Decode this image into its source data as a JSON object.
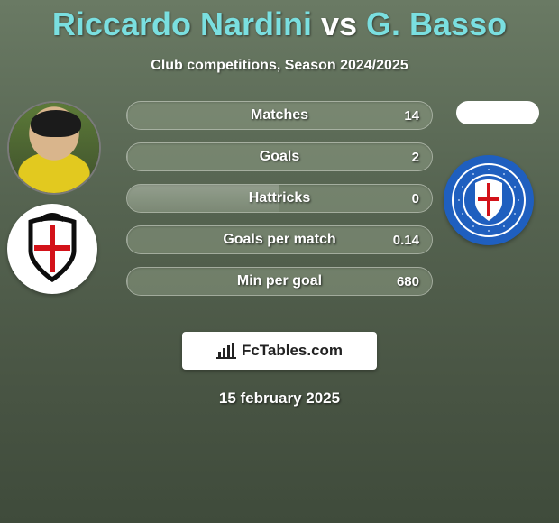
{
  "header": {
    "title_left": "Riccardo Nardini",
    "title_vs": " vs ",
    "title_right": "G. Basso",
    "title_color_accent": "#7adfe0",
    "title_fontsize": 36,
    "subtitle": "Club competitions, Season 2024/2025",
    "subtitle_fontsize": 16
  },
  "background": {
    "gradient_top": "#6a7a64",
    "gradient_bottom": "#3f4b3b"
  },
  "left_player": {
    "name": "Riccardo Nardini",
    "has_photo": true,
    "club_badge_bg": "#ffffff",
    "club_badge_shield_border": "#0d0d0d",
    "club_badge_cross": "#d31219"
  },
  "right_player": {
    "name": "G. Basso",
    "has_photo": false,
    "blank_pill_bg": "#ffffff",
    "club_badge_bg": "#1f5fbf",
    "club_badge_ring": "#ffffff",
    "club_badge_inner": "#2a6fdc",
    "club_badge_shield": "#ffffff",
    "club_badge_cross": "#d31219"
  },
  "stats": {
    "bar_bg": "rgba(140,155,132,0.55)",
    "bar_border": "rgba(255,255,255,0.35)",
    "fill_color": "rgba(255,255,255,0.15)",
    "label_fontsize": 16,
    "value_fontsize": 15,
    "rows": [
      {
        "label": "Matches",
        "left_val": "",
        "right_val": "14",
        "left_pct": 0,
        "right_pct": 100
      },
      {
        "label": "Goals",
        "left_val": "",
        "right_val": "2",
        "left_pct": 0,
        "right_pct": 100
      },
      {
        "label": "Hattricks",
        "left_val": "",
        "right_val": "0",
        "left_pct": 50,
        "right_pct": 50
      },
      {
        "label": "Goals per match",
        "left_val": "",
        "right_val": "0.14",
        "left_pct": 0,
        "right_pct": 100
      },
      {
        "label": "Min per goal",
        "left_val": "",
        "right_val": "680",
        "left_pct": 0,
        "right_pct": 100
      }
    ]
  },
  "brand": {
    "text": "FcTables.com",
    "bg": "#ffffff",
    "text_color": "#222222",
    "fontsize": 17
  },
  "footer_date": {
    "text": "15 february 2025",
    "fontsize": 17
  }
}
